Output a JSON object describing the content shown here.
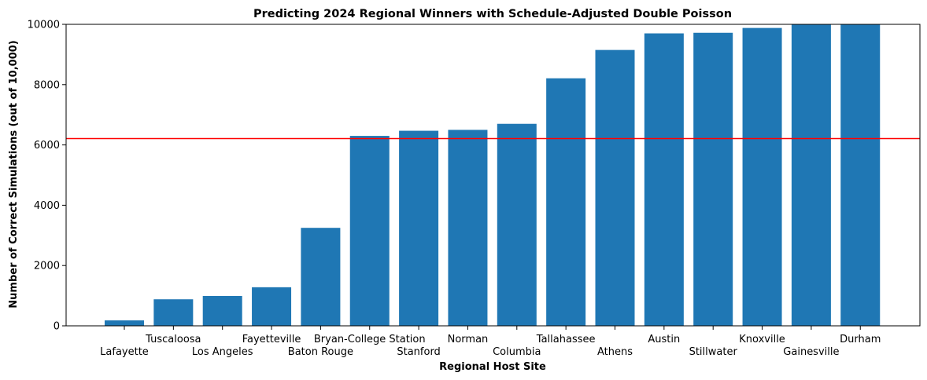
{
  "chart_data": {
    "type": "bar",
    "title": "Predicting 2024 Regional Winners with Schedule-Adjusted Double Poisson",
    "xlabel": "Regional Host Site",
    "ylabel": "Number of Correct Simulations (out of 10,000)",
    "categories": [
      "Lafayette",
      "Tuscaloosa",
      "Los Angeles",
      "Fayetteville",
      "Baton Rouge",
      "Bryan-College Station",
      "Stanford",
      "Norman",
      "Columbia",
      "Tallahassee",
      "Athens",
      "Austin",
      "Stillwater",
      "Knoxville",
      "Gainesville",
      "Durham"
    ],
    "values": [
      180,
      880,
      990,
      1280,
      3250,
      6300,
      6470,
      6500,
      6700,
      8210,
      9150,
      9700,
      9720,
      9880,
      10000,
      10000
    ],
    "ylim": [
      0,
      10000
    ],
    "yticks": [
      0,
      2000,
      4000,
      6000,
      8000,
      10000
    ],
    "reference_line": 6210,
    "colors": {
      "bar": "#1f77b4",
      "reference_line": "#ff0000",
      "axis": "#000000"
    },
    "grid": false,
    "legend": "none"
  }
}
